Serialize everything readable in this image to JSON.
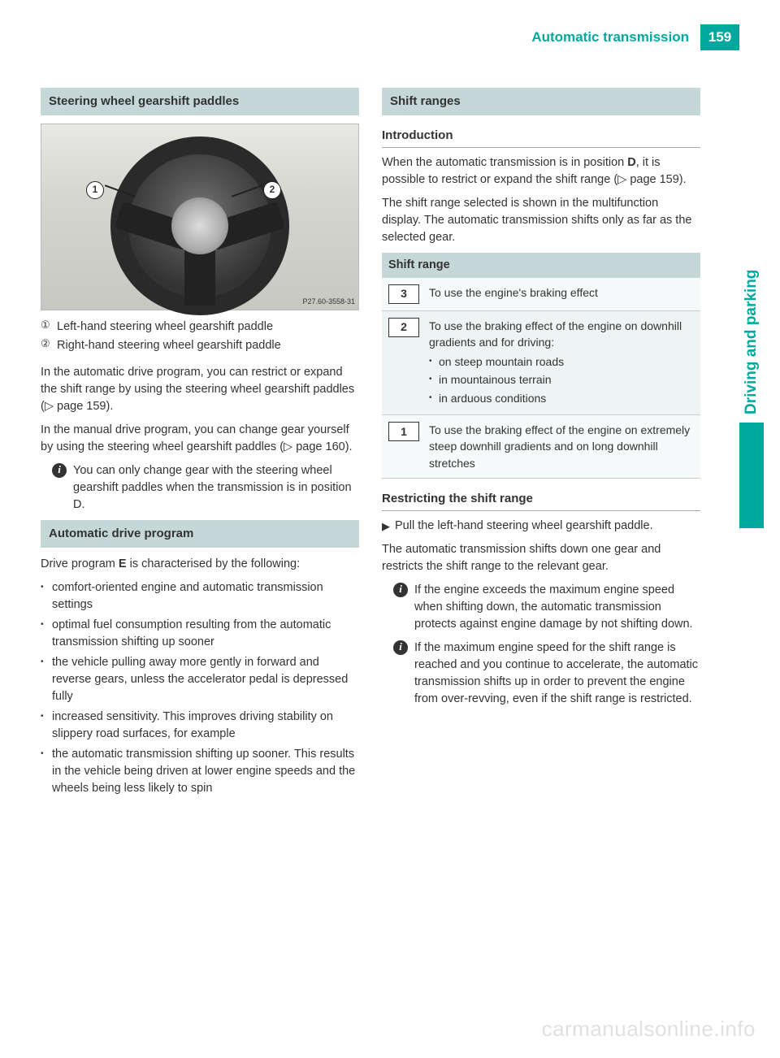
{
  "header": {
    "title": "Automatic transmission",
    "page_number": "159"
  },
  "side_tab": "Driving and parking",
  "colors": {
    "accent": "#00a99d",
    "section_bg": "#c5d7d7",
    "text": "#333333",
    "table_row_bg": "#eef3f3"
  },
  "left": {
    "section1": {
      "title": "Steering wheel gearshift paddles",
      "image_label": "P27.60-3558-31",
      "callout1": "1",
      "callout2": "2",
      "defs": [
        {
          "num": "①",
          "text": "Left-hand steering wheel gearshift paddle"
        },
        {
          "num": "②",
          "text": "Right-hand steering wheel gearshift paddle"
        }
      ],
      "p1": "In the automatic drive program, you can restrict or expand the shift range by using the steering wheel gearshift paddles (▷ page 159).",
      "p2": "In the manual drive program, you can change gear yourself by using the steering wheel gearshift paddles (▷ page 160).",
      "info": "You can only change gear with the steering wheel gearshift paddles when the transmission is in position D."
    },
    "section2": {
      "title": "Automatic drive program",
      "intro_pre": "Drive program ",
      "intro_bold": "E",
      "intro_post": " is characterised by the following:",
      "bullets": [
        "comfort-oriented engine and automatic transmission settings",
        "optimal fuel consumption resulting from the automatic transmission shifting up sooner",
        "the vehicle pulling away more gently in forward and reverse gears, unless the accelerator pedal is depressed fully",
        "increased sensitivity. This improves driving stability on slippery road surfaces, for example",
        "the automatic transmission shifting up sooner. This results in the vehicle being driven at lower engine speeds and the wheels being less likely to spin"
      ]
    }
  },
  "right": {
    "section1": {
      "title": "Shift ranges",
      "sub1": "Introduction",
      "p1_pre": "When the automatic transmission is in position ",
      "p1_bold": "D",
      "p1_post": ", it is possible to restrict or expand the shift range (▷ page 159).",
      "p2": "The shift range selected is shown in the multifunction display. The automatic transmission shifts only as far as the selected gear.",
      "table_head": "Shift range",
      "rows": [
        {
          "gear": "3",
          "desc": "To use the engine's braking effect",
          "subs": []
        },
        {
          "gear": "2",
          "desc": "To use the braking effect of the engine on downhill gradients and for driving:",
          "subs": [
            "on steep mountain roads",
            "in mountainous terrain",
            "in arduous conditions"
          ]
        },
        {
          "gear": "1",
          "desc": "To use the braking effect of the engine on extremely steep downhill gradients and on long downhill stretches",
          "subs": []
        }
      ],
      "sub2": "Restricting the shift range",
      "action1": "Pull the left-hand steering wheel gearshift paddle.",
      "action1_sub": "The automatic transmission shifts down one gear and restricts the shift range to the relevant gear.",
      "info1": "If the engine exceeds the maximum engine speed when shifting down, the automatic transmission protects against engine damage by not shifting down.",
      "info2": "If the maximum engine speed for the shift range is reached and you continue to accelerate, the automatic transmission shifts up in order to prevent the engine from over-revving, even if the shift range is restricted."
    }
  },
  "watermark": "carmanualsonline.info"
}
